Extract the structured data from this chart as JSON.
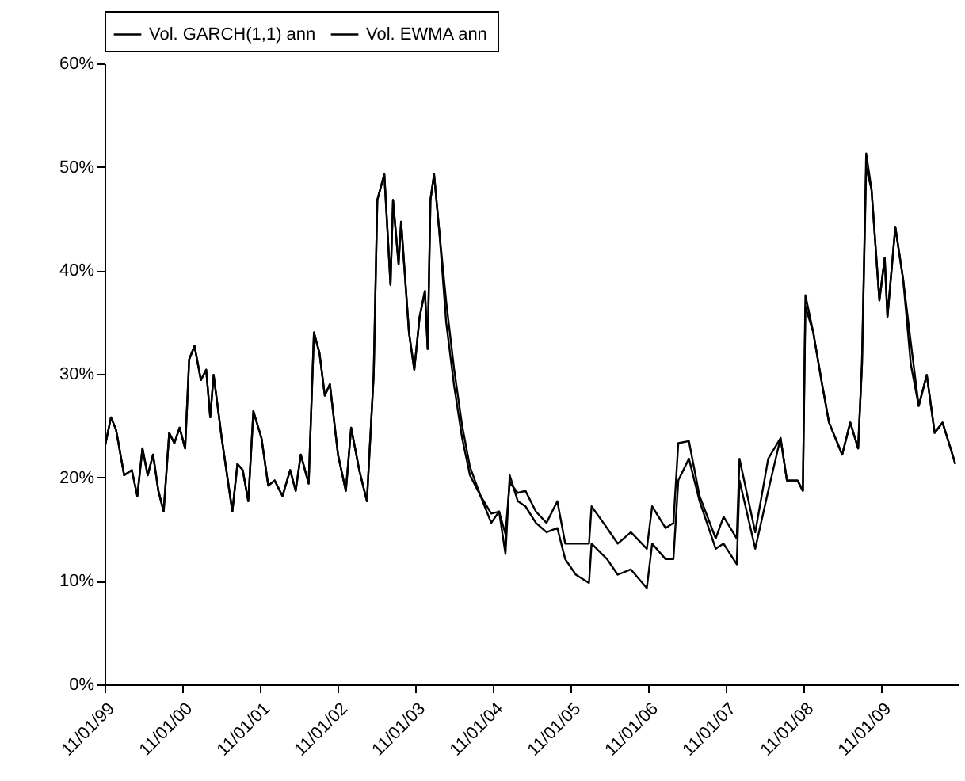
{
  "chart_data": {
    "type": "line",
    "legend": "top",
    "x": [
      "1999-11-01",
      "1999-12-01",
      "1999-12-25",
      "2000-02-01",
      "2000-03-08",
      "2000-04-03",
      "2000-04-27",
      "2000-05-22",
      "2000-06-16",
      "2000-07-11",
      "2000-08-05",
      "2000-08-31",
      "2000-09-24",
      "2000-10-19",
      "2000-11-14",
      "2000-12-03",
      "2000-12-28",
      "2001-01-27",
      "2001-02-21",
      "2001-03-12",
      "2001-03-28",
      "2001-05-05",
      "2001-06-24",
      "2001-07-18",
      "2001-08-12",
      "2001-09-07",
      "2001-10-01",
      "2001-11-08",
      "2001-12-10",
      "2002-01-09",
      "2002-02-15",
      "2002-03-23",
      "2002-04-18",
      "2002-05-12",
      "2002-06-18",
      "2002-07-13",
      "2002-08-08",
      "2002-09-02",
      "2002-09-26",
      "2002-11-03",
      "2002-12-10",
      "2003-01-04",
      "2003-02-11",
      "2003-03-19",
      "2003-04-20",
      "2003-05-07",
      "2003-06-09",
      "2003-07-08",
      "2003-07-20",
      "2003-08-15",
      "2003-08-27",
      "2003-10-03",
      "2003-10-28",
      "2003-11-22",
      "2003-12-17",
      "2003-12-30",
      "2004-01-12",
      "2004-01-29",
      "2004-02-23",
      "2004-03-26",
      "2004-05-02",
      "2004-06-09",
      "2004-07-16",
      "2004-09-04",
      "2004-10-24",
      "2004-11-30",
      "2004-12-30",
      "2005-01-19",
      "2005-02-26",
      "2005-04-03",
      "2005-05-22",
      "2005-07-11",
      "2005-08-31",
      "2005-10-07",
      "2005-11-26",
      "2006-01-27",
      "2006-02-08",
      "2006-04-22",
      "2006-06-11",
      "2006-08-12",
      "2006-10-26",
      "2006-11-20",
      "2007-01-22",
      "2007-02-28",
      "2007-03-23",
      "2007-05-12",
      "2007-07-01",
      "2007-09-15",
      "2007-10-22",
      "2007-12-23",
      "2008-01-05",
      "2008-03-19",
      "2008-05-19",
      "2008-07-16",
      "2008-08-15",
      "2008-10-04",
      "2008-10-29",
      "2008-11-10",
      "2008-12-17",
      "2009-01-24",
      "2009-03-01",
      "2009-05-02",
      "2009-06-09",
      "2009-07-16",
      "2009-08-03",
      "2009-08-23",
      "2009-09-17",
      "2009-10-24",
      "2009-11-18",
      "2009-12-01",
      "2010-01-07",
      "2010-02-13",
      "2010-03-21",
      "2010-04-27",
      "2010-06-04",
      "2010-07-11",
      "2010-08-17",
      "2010-09-24",
      "2010-10-16"
    ],
    "series": [
      {
        "name": "Vol. GARCH(1,1) ann",
        "color": "#000000",
        "values": [
          22.8,
          25.8,
          24.6,
          20.2,
          20.7,
          18.2,
          22.8,
          20.2,
          22.2,
          18.7,
          16.7,
          24.3,
          23.3,
          24.8,
          22.8,
          31.4,
          32.7,
          29.4,
          30.4,
          25.8,
          29.9,
          23.8,
          16.7,
          21.3,
          20.7,
          17.7,
          26.4,
          23.8,
          19.2,
          19.7,
          18.2,
          20.7,
          18.7,
          22.2,
          19.4,
          34.0,
          32.0,
          27.9,
          29.0,
          22.2,
          18.7,
          24.8,
          20.7,
          17.7,
          29.9,
          46.8,
          49.3,
          38.6,
          46.8,
          40.6,
          44.7,
          34.0,
          30.4,
          35.5,
          38.0,
          32.4,
          46.8,
          49.3,
          43.7,
          37.0,
          30.5,
          25.0,
          21.0,
          18.2,
          16.5,
          16.7,
          14.5,
          19.5,
          18.5,
          18.7,
          16.7,
          15.6,
          17.7,
          13.6,
          13.6,
          13.6,
          17.2,
          15.1,
          13.6,
          14.7,
          13.1,
          17.2,
          15.1,
          15.6,
          23.3,
          23.5,
          18.2,
          14.1,
          16.2,
          14.1,
          21.8,
          14.7,
          21.8,
          23.8,
          19.7,
          19.7,
          18.7,
          37.6,
          34.0,
          29.4,
          25.3,
          22.2,
          25.3,
          22.8,
          30.9,
          51.3,
          47.8,
          37.1,
          41.2,
          35.5,
          44.2,
          39.1,
          33.0,
          26.9,
          29.9,
          24.3,
          25.3,
          22.8,
          21.3
        ]
      },
      {
        "name": "Vol. EWMA ann",
        "color": "#000000",
        "values": [
          22.8,
          25.8,
          24.6,
          20.2,
          20.7,
          18.2,
          22.8,
          20.2,
          22.2,
          18.7,
          16.7,
          24.3,
          23.3,
          24.8,
          22.8,
          31.4,
          32.7,
          29.4,
          30.4,
          25.8,
          29.9,
          23.8,
          16.7,
          21.3,
          20.7,
          17.7,
          26.4,
          23.8,
          19.2,
          19.7,
          18.2,
          20.7,
          18.7,
          22.2,
          19.4,
          34.0,
          32.0,
          27.9,
          29.0,
          22.2,
          18.7,
          24.8,
          20.7,
          17.7,
          29.9,
          46.8,
          49.3,
          38.6,
          46.8,
          40.6,
          44.7,
          34.0,
          30.4,
          35.5,
          38.0,
          32.4,
          46.8,
          49.3,
          43.7,
          35.0,
          28.9,
          23.8,
          20.2,
          18.2,
          15.6,
          16.7,
          12.6,
          20.2,
          17.7,
          17.2,
          15.6,
          14.7,
          15.1,
          12.1,
          10.6,
          9.8,
          13.6,
          12.1,
          10.6,
          11.1,
          9.3,
          13.6,
          12.1,
          12.1,
          19.7,
          21.8,
          17.7,
          13.1,
          13.6,
          11.6,
          19.7,
          13.1,
          18.7,
          23.8,
          19.7,
          19.7,
          18.7,
          36.5,
          34.0,
          29.4,
          25.3,
          22.2,
          25.3,
          22.8,
          30.9,
          50.0,
          47.8,
          37.1,
          41.2,
          35.5,
          44.2,
          39.1,
          30.9,
          26.9,
          29.9,
          24.3,
          25.3,
          22.8,
          21.3
        ]
      }
    ],
    "xlim": [
      "1999-11-01",
      "2010-11-01"
    ],
    "xticks": [
      {
        "value": "1999-11-01",
        "label": "11/01/99"
      },
      {
        "value": "2000-11-01",
        "label": "11/01/00"
      },
      {
        "value": "2001-11-01",
        "label": "11/01/01"
      },
      {
        "value": "2002-11-01",
        "label": "11/01/02"
      },
      {
        "value": "2003-11-01",
        "label": "11/01/03"
      },
      {
        "value": "2004-11-01",
        "label": "11/01/04"
      },
      {
        "value": "2005-11-01",
        "label": "11/01/05"
      },
      {
        "value": "2006-11-01",
        "label": "11/01/06"
      },
      {
        "value": "2007-11-01",
        "label": "11/01/07"
      },
      {
        "value": "2008-11-01",
        "label": "11/01/08"
      },
      {
        "value": "2009-11-01",
        "label": "11/01/09"
      }
    ],
    "ylim": [
      0,
      60
    ],
    "yticks": [
      {
        "value": 0,
        "label": "0%"
      },
      {
        "value": 10,
        "label": "10%"
      },
      {
        "value": 20,
        "label": "20%"
      },
      {
        "value": 30,
        "label": "30%"
      },
      {
        "value": 40,
        "label": "40%"
      },
      {
        "value": 50,
        "label": "50%"
      },
      {
        "value": 60,
        "label": "60%"
      }
    ]
  }
}
